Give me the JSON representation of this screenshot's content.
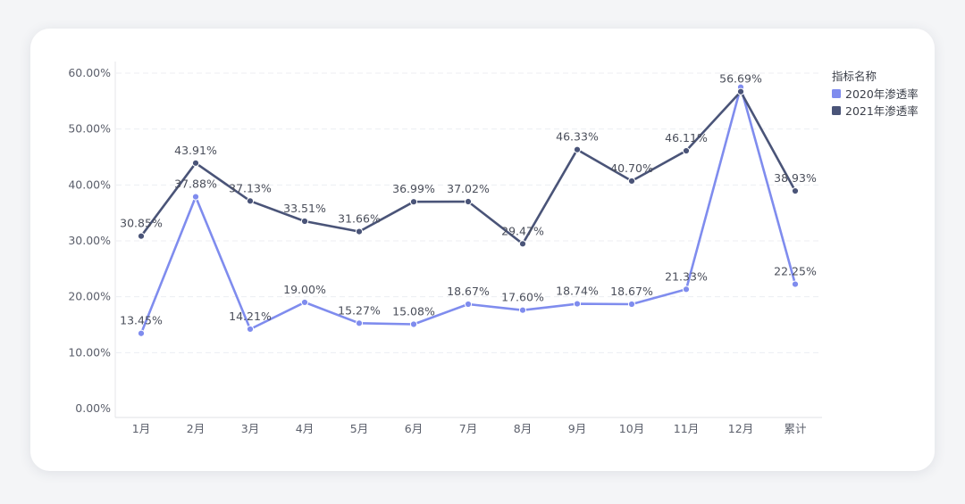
{
  "chart_data": {
    "type": "line",
    "categories": [
      "1月",
      "2月",
      "3月",
      "4月",
      "5月",
      "6月",
      "7月",
      "8月",
      "9月",
      "10月",
      "11月",
      "12月",
      "累计"
    ],
    "series": [
      {
        "name": "2020年渗透率",
        "color": "#7f8cee",
        "values": [
          13.45,
          37.88,
          14.21,
          19.0,
          15.27,
          15.08,
          18.67,
          17.6,
          18.74,
          18.67,
          21.33,
          57.5,
          22.25
        ],
        "labels": [
          "13.45%",
          "37.88%",
          "14.21%",
          "19.00%",
          "15.27%",
          "15.08%",
          "18.67%",
          "17.60%",
          "18.74%",
          "18.67%",
          "21.33%",
          "",
          "22.25%"
        ]
      },
      {
        "name": "2021年渗透率",
        "color": "#4a5478",
        "values": [
          30.85,
          43.91,
          37.13,
          33.51,
          31.66,
          36.99,
          37.02,
          29.47,
          46.33,
          40.7,
          46.11,
          56.69,
          38.93
        ],
        "labels": [
          "30.85%",
          "43.91%",
          "37.13%",
          "33.51%",
          "31.66%",
          "36.99%",
          "37.02%",
          "29.47%",
          "46.33%",
          "40.70%",
          "46.11%",
          "56.69%",
          "38.93%"
        ]
      }
    ],
    "yticks": [
      "0.00%",
      "10.00%",
      "20.00%",
      "30.00%",
      "40.00%",
      "50.00%",
      "60.00%"
    ],
    "ylim": [
      0,
      60
    ],
    "grid": true,
    "legend": {
      "title": "指标名称",
      "position": "top-right"
    }
  }
}
